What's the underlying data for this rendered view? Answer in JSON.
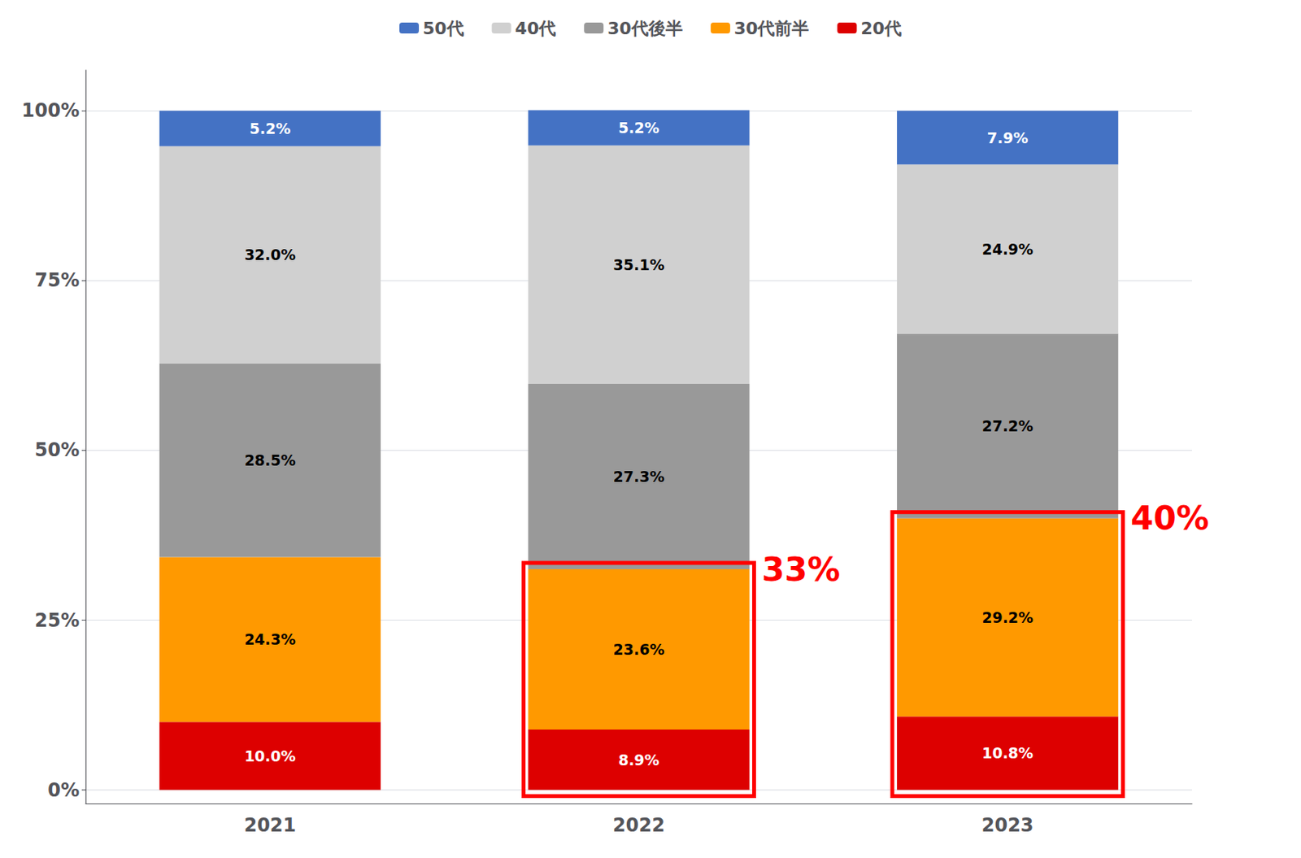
{
  "chart_data": {
    "type": "bar",
    "stacked": true,
    "categories": [
      "2021",
      "2022",
      "2023"
    ],
    "series": [
      {
        "name": "20代",
        "color": "#dd0000",
        "values": [
          10.0,
          8.9,
          10.8
        ],
        "value_labels": [
          "10.0%",
          "8.9%",
          "10.8%"
        ]
      },
      {
        "name": "30代前半",
        "color": "#ff9900",
        "values": [
          24.3,
          23.6,
          29.2
        ],
        "value_labels": [
          "24.3%",
          "23.6%",
          "29.2%"
        ]
      },
      {
        "name": "30代後半",
        "color": "#999999",
        "values": [
          28.5,
          27.3,
          27.2
        ],
        "value_labels": [
          "28.5%",
          "27.3%",
          "27.2%"
        ]
      },
      {
        "name": "40代",
        "color": "#d0d0d0",
        "values": [
          32.0,
          35.1,
          24.9
        ],
        "value_labels": [
          "32.0%",
          "35.1%",
          "24.9%"
        ]
      },
      {
        "name": "50代",
        "color": "#4472c4",
        "values": [
          5.2,
          5.2,
          7.9
        ],
        "value_labels": [
          "5.2%",
          "5.2%",
          "7.9%"
        ]
      }
    ],
    "ylim": [
      -2,
      106
    ],
    "yticks": [
      {
        "value": 0,
        "label": "0%"
      },
      {
        "value": 25,
        "label": "25%"
      },
      {
        "value": 50,
        "label": "50%"
      },
      {
        "value": 75,
        "label": "75%"
      },
      {
        "value": 100,
        "label": "100%"
      }
    ],
    "grid": true,
    "legend": "top",
    "data_labels": true,
    "annotations": [
      {
        "text": "33%",
        "x": "2022",
        "box": [
          "20代",
          "30代前半"
        ]
      },
      {
        "text": "40%",
        "x": "2023",
        "box": [
          "20代",
          "30代前半"
        ]
      }
    ]
  }
}
